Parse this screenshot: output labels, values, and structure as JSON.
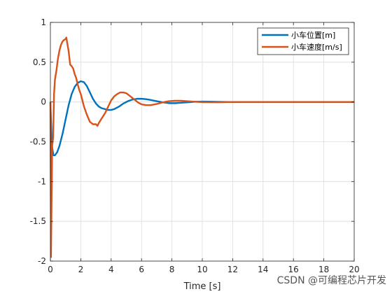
{
  "colors": {
    "series1": "#0072BD",
    "series2": "#D95319",
    "grid": "#dcdcdc",
    "axis": "#262626"
  },
  "watermark": "CSDN @可编程芯片开发",
  "chart_data": {
    "type": "line",
    "xlabel": "Time [s]",
    "ylabel": "",
    "title": "",
    "xlim": [
      0,
      20
    ],
    "ylim": [
      -2,
      1
    ],
    "xticks": [
      0,
      2,
      4,
      6,
      8,
      10,
      12,
      14,
      16,
      18,
      20
    ],
    "yticks": [
      -2,
      -1.5,
      -1,
      -0.5,
      0,
      0.5,
      1
    ],
    "xtick_labels": [
      "0",
      "2",
      "4",
      "6",
      "8",
      "10",
      "12",
      "14",
      "16",
      "18",
      "20"
    ],
    "ytick_labels": [
      "-2",
      "-1.5",
      "-1",
      "-0.5",
      "0",
      "0.5",
      "1"
    ],
    "grid": true,
    "legend_position": "top-right",
    "series": [
      {
        "name": "小车位置[m]",
        "color": "#0072BD",
        "x": [
          0,
          0.1,
          0.2,
          0.3,
          0.45,
          0.6,
          0.8,
          1.0,
          1.2,
          1.4,
          1.6,
          1.8,
          2.0,
          2.2,
          2.4,
          2.6,
          2.8,
          3.0,
          3.2,
          3.4,
          3.6,
          3.8,
          4.0,
          4.2,
          4.5,
          4.8,
          5.1,
          5.4,
          5.7,
          6.0,
          6.3,
          6.6,
          7.0,
          7.4,
          7.8,
          8.2,
          8.6,
          9.0,
          9.5,
          10,
          10.5,
          11,
          12,
          13,
          14,
          16,
          18,
          20
        ],
        "y": [
          0,
          -0.55,
          -0.67,
          -0.67,
          -0.63,
          -0.55,
          -0.4,
          -0.22,
          -0.04,
          0.1,
          0.19,
          0.24,
          0.26,
          0.25,
          0.2,
          0.12,
          0.04,
          -0.02,
          -0.06,
          -0.08,
          -0.09,
          -0.1,
          -0.1,
          -0.09,
          -0.06,
          -0.02,
          0.01,
          0.03,
          0.04,
          0.04,
          0.035,
          0.025,
          0.01,
          -0.005,
          -0.015,
          -0.015,
          -0.01,
          -0.005,
          0.002,
          0.005,
          0.004,
          0.002,
          -0.001,
          0.0,
          0.0,
          0.0,
          0.0,
          0.0
        ]
      },
      {
        "name": "小车速度[m/s]",
        "color": "#D95319",
        "x": [
          0,
          0.04,
          0.08,
          0.12,
          0.18,
          0.24,
          0.3,
          0.4,
          0.5,
          0.6,
          0.7,
          0.8,
          0.9,
          1.0,
          1.05,
          1.1,
          1.2,
          1.3,
          1.4,
          1.5,
          1.6,
          1.7,
          1.8,
          1.9,
          2.0,
          2.2,
          2.4,
          2.6,
          2.8,
          3.0,
          3.1,
          3.2,
          3.4,
          3.6,
          3.8,
          4.0,
          4.2,
          4.4,
          4.6,
          4.8,
          5.0,
          5.2,
          5.4,
          5.6,
          5.8,
          6.0,
          6.3,
          6.6,
          7.0,
          7.4,
          7.8,
          8.2,
          8.6,
          9.0,
          9.5,
          10,
          11,
          12,
          14,
          16,
          18,
          20
        ],
        "y": [
          0,
          -1.95,
          -1.2,
          -0.55,
          -0.45,
          0.1,
          0.28,
          0.4,
          0.55,
          0.65,
          0.72,
          0.76,
          0.78,
          0.79,
          0.81,
          0.75,
          0.64,
          0.47,
          0.45,
          0.42,
          0.35,
          0.3,
          0.22,
          0.15,
          0.1,
          -0.05,
          -0.16,
          -0.25,
          -0.28,
          -0.28,
          -0.3,
          -0.26,
          -0.2,
          -0.14,
          -0.06,
          0.02,
          0.07,
          0.1,
          0.12,
          0.12,
          0.11,
          0.08,
          0.05,
          0.02,
          -0.01,
          -0.03,
          -0.04,
          -0.04,
          -0.025,
          -0.005,
          0.01,
          0.015,
          0.015,
          0.01,
          0.003,
          -0.002,
          -0.003,
          0.0,
          0.0,
          0.0,
          0.0,
          0.0
        ]
      }
    ]
  }
}
